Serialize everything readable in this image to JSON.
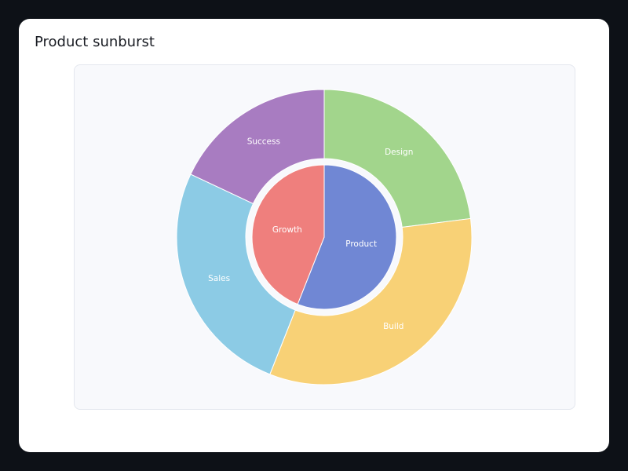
{
  "chart_data": {
    "type": "sunburst",
    "title": "Product sunburst",
    "nodes": [
      {
        "name": "Product",
        "color": "#7087d4",
        "value": 56,
        "children": [
          {
            "name": "Design",
            "color": "#a2d58c",
            "value": 23
          },
          {
            "name": "Build",
            "color": "#f8d176",
            "value": 33
          }
        ]
      },
      {
        "name": "Growth",
        "color": "#ef7f7d",
        "value": 44,
        "children": [
          {
            "name": "Sales",
            "color": "#8ccbe5",
            "value": 26
          },
          {
            "name": "Success",
            "color": "#a87cc1",
            "value": 18
          }
        ]
      }
    ]
  }
}
